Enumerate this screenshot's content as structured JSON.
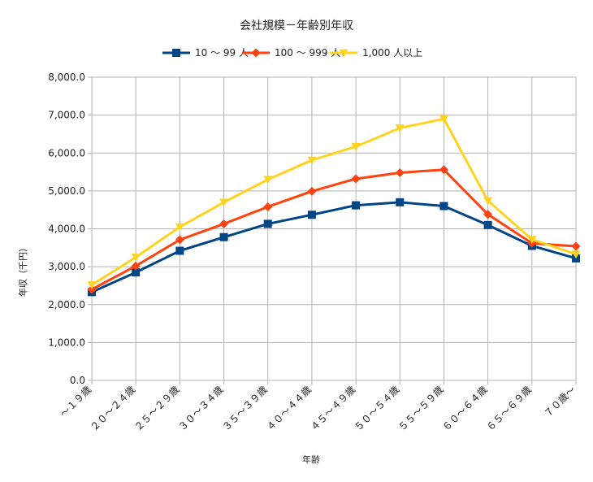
{
  "chart_data": {
    "type": "line",
    "title": "会社規模－年齢別年収",
    "xlabel": "年齢",
    "ylabel": "年収（千円）",
    "ylim": [
      0,
      8000
    ],
    "yticks": [
      "0.0",
      "1,000.0",
      "2,000.0",
      "3,000.0",
      "4,000.0",
      "5,000.0",
      "6,000.0",
      "7,000.0",
      "8,000.0"
    ],
    "grid": true,
    "legend_position": "top",
    "categories": [
      "～１９歳",
      "２０～２４歳",
      "２５～２９歳",
      "３０～３４歳",
      "３５～３９歳",
      "４０～４４歳",
      "４５～４９歳",
      "５０～５４歳",
      "５５～５９歳",
      "６０～６４歳",
      "６５～６９歳",
      "７０歳～"
    ],
    "series": [
      {
        "name": "10 ～ 99 人",
        "color": "#004586",
        "marker": "square",
        "values": [
          2330,
          2850,
          3420,
          3780,
          4130,
          4370,
          4620,
          4700,
          4600,
          4100,
          3550,
          3220
        ]
      },
      {
        "name": "100 ～ 999 人",
        "color": "#ff420e",
        "marker": "diamond",
        "values": [
          2400,
          3020,
          3710,
          4130,
          4580,
          4990,
          5320,
          5480,
          5560,
          4380,
          3620,
          3540
        ]
      },
      {
        "name": "1,000 人以上",
        "color": "#ffd320",
        "marker": "triangle-down",
        "values": [
          2520,
          3250,
          4050,
          4700,
          5300,
          5810,
          6170,
          6660,
          6900,
          4740,
          3720,
          3330
        ]
      }
    ]
  }
}
